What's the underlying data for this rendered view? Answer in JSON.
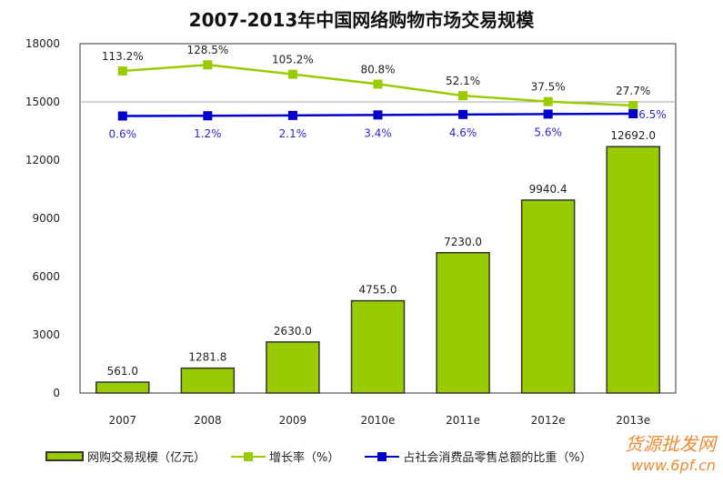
{
  "chart_data": {
    "type": "bar",
    "title": "2007-2013年中国网络购物市场交易规模",
    "categories": [
      "2007",
      "2008",
      "2009",
      "2010e",
      "2011e",
      "2012e",
      "2013e"
    ],
    "ylim": [
      0,
      18000
    ],
    "yticks": [
      "0",
      "3000",
      "6000",
      "9000",
      "12000",
      "15000",
      "18000"
    ],
    "grid": false,
    "legend_position": "bottom",
    "series": [
      {
        "name": "网购交易规模（亿元）",
        "type": "bar",
        "color": "#99cc00",
        "values": [
          561.0,
          1281.8,
          2630.0,
          4755.0,
          7230.0,
          9940.4,
          12692.0
        ],
        "labels": [
          "561.0",
          "1281.8",
          "2630.0",
          "4755.0",
          "7230.0",
          "9940.4",
          "12692.0"
        ]
      },
      {
        "name": "增长率（%）",
        "type": "line",
        "color": "#99cc00",
        "values": [
          113.2,
          128.5,
          105.2,
          80.8,
          52.1,
          37.5,
          27.7
        ],
        "labels": [
          "113.2%",
          "128.5%",
          "105.2%",
          "80.8%",
          "52.1%",
          "37.5%",
          "27.7%"
        ]
      },
      {
        "name": "占社会消费品零售总额的比重（%）",
        "type": "line",
        "color": "#0000cc",
        "values": [
          0.6,
          1.2,
          2.1,
          3.4,
          4.6,
          5.6,
          6.5
        ],
        "labels": [
          "0.6%",
          "1.2%",
          "2.1%",
          "3.4%",
          "4.6%",
          "5.6%",
          "6.5%"
        ]
      }
    ]
  },
  "watermark": {
    "line1": "货源批发网",
    "line2": "www.6pf.cn"
  }
}
